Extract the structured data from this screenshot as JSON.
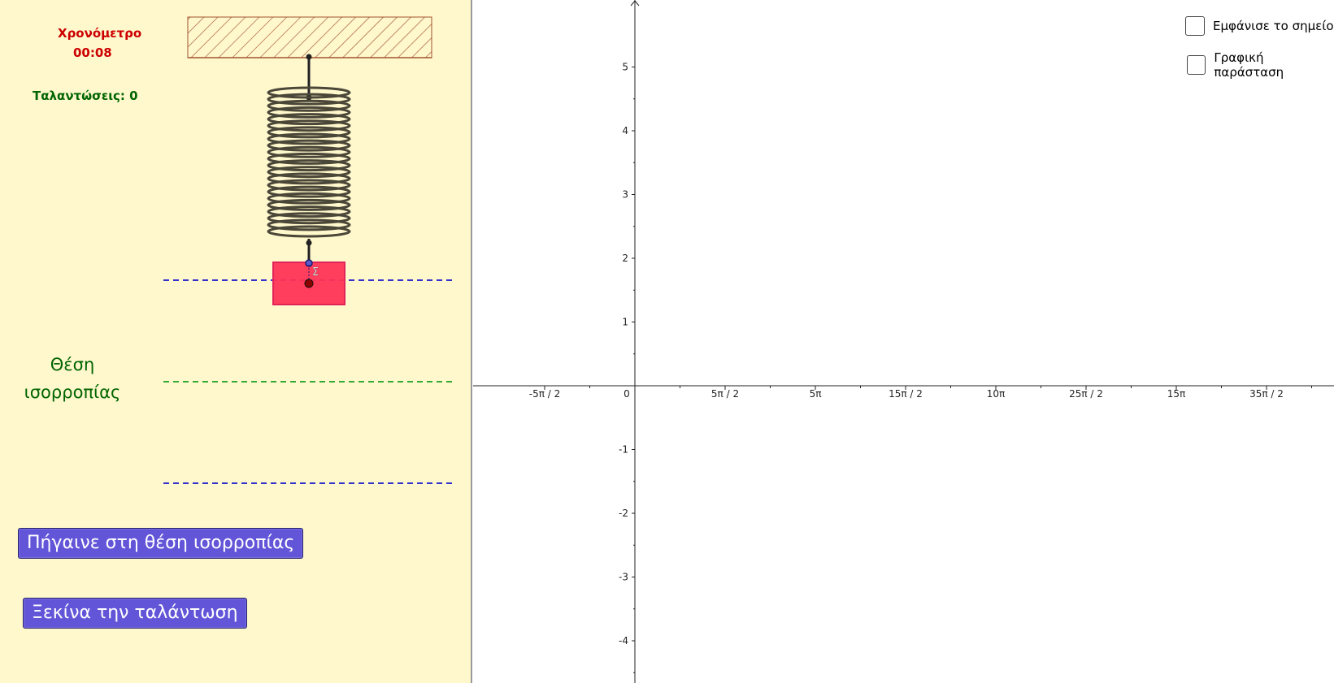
{
  "stopwatch": {
    "label": "Χρονόμετρο",
    "time": "00:08"
  },
  "oscillations": {
    "label": "Ταλαντώσεις: 0"
  },
  "equilibrium": {
    "line1": "Θέση",
    "line2": "ισορροπίας"
  },
  "buttons": {
    "goto_equilibrium": "Πήγαινε στη θέση ισορροπίας",
    "start": "Ξεκίνα την ταλάντωση"
  },
  "mass": {
    "label": "Σ"
  },
  "checkboxes": {
    "show_point": {
      "label": "Εμφάνισε το σημείο",
      "checked": false
    },
    "graph": {
      "label": "Γραφική παράσταση",
      "checked": false
    }
  },
  "axes": {
    "x_ticks": [
      "-5π / 2",
      "0",
      "5π / 2",
      "5π",
      "15π / 2",
      "10π",
      "25π / 2",
      "15π",
      "35π / 2"
    ],
    "y_ticks": [
      "5",
      "4",
      "3",
      "2",
      "1",
      "-1",
      "-2",
      "-3",
      "-4"
    ]
  },
  "colors": {
    "panel_bg": "#fff8cd",
    "button_bg": "#6355d8",
    "mass_fill": "#ff3355",
    "stopwatch_text": "#cc0000",
    "oscillation_text": "#006400",
    "extreme_line": "#3333cc",
    "equilibrium_line": "#33aa33",
    "ceiling_hatch": "#a0522d"
  }
}
